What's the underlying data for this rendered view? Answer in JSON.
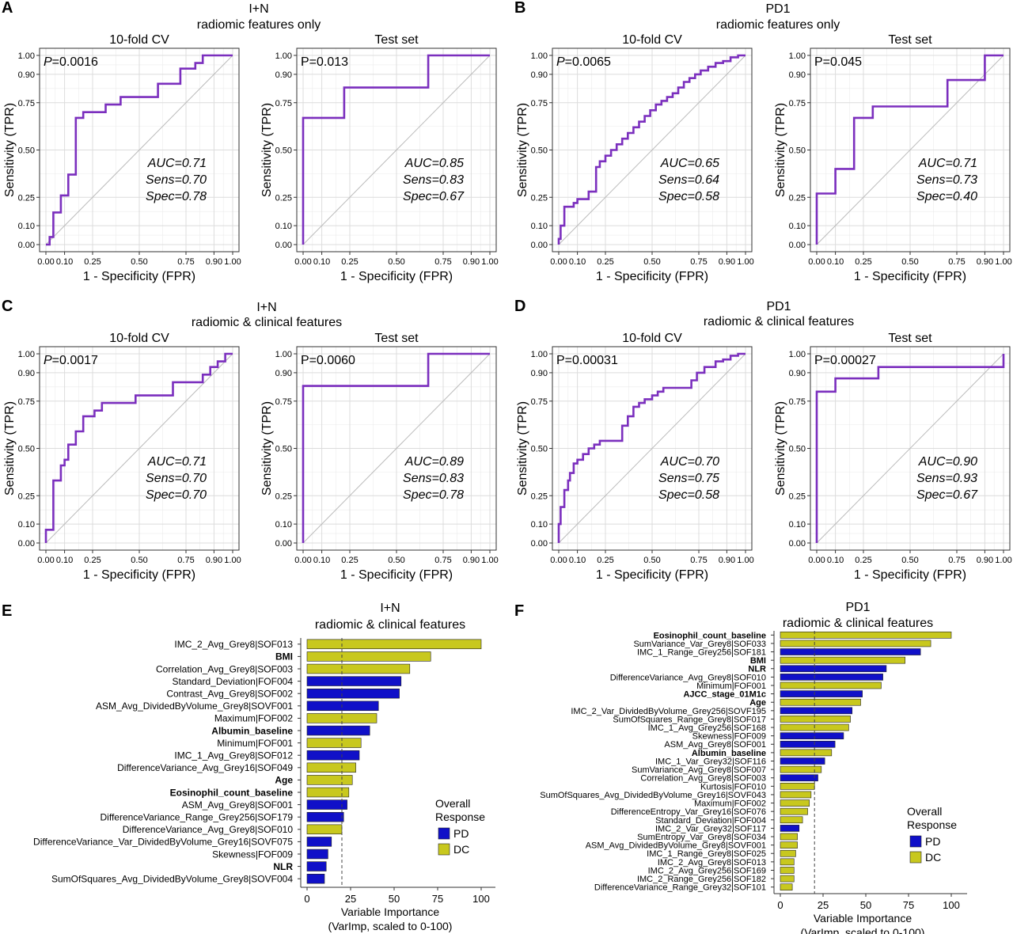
{
  "panels": [
    {
      "letter": "A",
      "title_lines": [
        "I+N",
        "radiomic features only"
      ]
    },
    {
      "letter": "B",
      "title_lines": [
        "PD1",
        "radiomic features only"
      ]
    },
    {
      "letter": "C",
      "title_lines": [
        "I+N",
        "radiomic & clinical features"
      ]
    },
    {
      "letter": "D",
      "title_lines": [
        "PD1",
        "radiomic & clinical features"
      ]
    },
    {
      "letter": "E",
      "title_lines": [
        "I+N",
        "radiomic & clinical features"
      ]
    },
    {
      "letter": "F",
      "title_lines": [
        "PD1",
        "radiomic & clinical features"
      ]
    }
  ],
  "colors": {
    "roc_line": "#7B2FBE",
    "PD": "#1010C8",
    "DC": "#C8C81E",
    "diagonal": "#bbbbbb",
    "grid": "#ebebeb"
  },
  "roc_axes": {
    "xlabel": "1 - Specificity (FPR)",
    "ylabel": "Sensitivity (TPR)",
    "ticks": [
      0,
      0.1,
      0.25,
      0.5,
      0.75,
      0.9,
      1.0
    ],
    "tick_labels": [
      "0.00",
      "0.10",
      "0.25",
      "0.50",
      "0.75",
      "0.90",
      "1.00"
    ]
  },
  "bar_legend": {
    "title_lines": [
      "Overall",
      "Response"
    ],
    "items": [
      "PD",
      "DC"
    ]
  },
  "bar_axes": {
    "xlabel_lines": [
      "Variable Importance",
      "(VarImp, scaled to 0-100)"
    ],
    "ticks": [
      0,
      25,
      50,
      75,
      100
    ],
    "tick_labels": [
      "0",
      "25",
      "50",
      "75",
      "100"
    ],
    "xlim": [
      0,
      100
    ],
    "reference_line": 20
  },
  "chart_data": [
    {
      "type": "line",
      "panel": "A",
      "title": "10-fold CV",
      "p_label": "P",
      "p_value": "=0.0016",
      "stats": [
        "AUC=0.71",
        "Sens=0.70",
        "Spec=0.78"
      ],
      "series": [
        {
          "name": "ROC",
          "x": [
            0,
            0.02,
            0.02,
            0.04,
            0.04,
            0.08,
            0.08,
            0.12,
            0.12,
            0.16,
            0.16,
            0.2,
            0.2,
            0.32,
            0.32,
            0.4,
            0.4,
            0.6,
            0.6,
            0.72,
            0.72,
            0.8,
            0.8,
            0.84,
            0.84,
            1.0
          ],
          "y": [
            0,
            0,
            0.04,
            0.04,
            0.17,
            0.17,
            0.26,
            0.26,
            0.37,
            0.37,
            0.67,
            0.67,
            0.7,
            0.7,
            0.74,
            0.74,
            0.78,
            0.78,
            0.85,
            0.85,
            0.93,
            0.93,
            0.96,
            0.96,
            1.0,
            1.0
          ]
        }
      ],
      "xlim": [
        0,
        1
      ],
      "ylim": [
        0,
        1
      ]
    },
    {
      "type": "line",
      "panel": "A",
      "title": "Test set",
      "p_label": "",
      "p_value": "P=0.013",
      "stats": [
        "AUC=0.85",
        "Sens=0.83",
        "Spec=0.67"
      ],
      "series": [
        {
          "name": "ROC",
          "x": [
            0,
            0,
            0.22,
            0.22,
            0.67,
            0.67,
            1.0
          ],
          "y": [
            0,
            0.67,
            0.67,
            0.83,
            0.83,
            1.0,
            1.0
          ]
        }
      ],
      "xlim": [
        0,
        1
      ],
      "ylim": [
        0,
        1
      ]
    },
    {
      "type": "line",
      "panel": "B",
      "title": "10-fold CV",
      "p_label": "P",
      "p_value": "=0.0065",
      "stats": [
        "AUC=0.65",
        "Sens=0.64",
        "Spec=0.58"
      ],
      "series": [
        {
          "name": "ROC",
          "x": [
            0,
            0,
            0.01,
            0.01,
            0.03,
            0.03,
            0.08,
            0.08,
            0.1,
            0.1,
            0.16,
            0.16,
            0.2,
            0.2,
            0.22,
            0.22,
            0.25,
            0.25,
            0.28,
            0.28,
            0.31,
            0.31,
            0.34,
            0.34,
            0.37,
            0.37,
            0.4,
            0.4,
            0.43,
            0.43,
            0.46,
            0.46,
            0.49,
            0.49,
            0.52,
            0.52,
            0.55,
            0.55,
            0.58,
            0.58,
            0.61,
            0.61,
            0.64,
            0.64,
            0.67,
            0.67,
            0.7,
            0.7,
            0.73,
            0.73,
            0.76,
            0.76,
            0.8,
            0.8,
            0.84,
            0.84,
            0.88,
            0.88,
            0.92,
            0.92,
            0.96,
            0.96,
            1.0
          ],
          "y": [
            0,
            0.03,
            0.03,
            0.1,
            0.1,
            0.2,
            0.2,
            0.22,
            0.22,
            0.24,
            0.24,
            0.28,
            0.28,
            0.41,
            0.41,
            0.44,
            0.44,
            0.47,
            0.47,
            0.5,
            0.5,
            0.53,
            0.53,
            0.56,
            0.56,
            0.59,
            0.59,
            0.62,
            0.62,
            0.65,
            0.65,
            0.68,
            0.68,
            0.71,
            0.71,
            0.74,
            0.74,
            0.76,
            0.76,
            0.78,
            0.78,
            0.8,
            0.8,
            0.83,
            0.83,
            0.86,
            0.86,
            0.88,
            0.88,
            0.9,
            0.9,
            0.92,
            0.92,
            0.94,
            0.94,
            0.96,
            0.96,
            0.97,
            0.97,
            0.99,
            0.99,
            1.0,
            1.0
          ]
        }
      ],
      "xlim": [
        0,
        1
      ],
      "ylim": [
        0,
        1
      ]
    },
    {
      "type": "line",
      "panel": "B",
      "title": "Test set",
      "p_label": "",
      "p_value": "P=0.045",
      "stats": [
        "AUC=0.71",
        "Sens=0.73",
        "Spec=0.40"
      ],
      "series": [
        {
          "name": "ROC",
          "x": [
            0,
            0,
            0.1,
            0.1,
            0.2,
            0.2,
            0.3,
            0.3,
            0.7,
            0.7,
            0.9,
            0.9,
            1.0
          ],
          "y": [
            0,
            0.27,
            0.27,
            0.4,
            0.4,
            0.67,
            0.67,
            0.73,
            0.73,
            0.87,
            0.87,
            1.0,
            1.0
          ]
        }
      ],
      "xlim": [
        0,
        1
      ],
      "ylim": [
        0,
        1
      ]
    },
    {
      "type": "line",
      "panel": "C",
      "title": "10-fold CV",
      "p_label": "P",
      "p_value": "=0.0017",
      "stats": [
        "AUC=0.71",
        "Sens=0.70",
        "Spec=0.70"
      ],
      "series": [
        {
          "name": "ROC",
          "x": [
            0,
            0,
            0.04,
            0.04,
            0.08,
            0.08,
            0.1,
            0.1,
            0.12,
            0.12,
            0.16,
            0.16,
            0.2,
            0.2,
            0.26,
            0.26,
            0.3,
            0.3,
            0.34,
            0.34,
            0.48,
            0.48,
            0.56,
            0.56,
            0.68,
            0.68,
            0.8,
            0.8,
            0.84,
            0.84,
            0.88,
            0.88,
            0.92,
            0.92,
            0.96,
            0.96,
            1.0
          ],
          "y": [
            0,
            0.07,
            0.07,
            0.33,
            0.33,
            0.41,
            0.41,
            0.44,
            0.44,
            0.52,
            0.52,
            0.59,
            0.59,
            0.67,
            0.67,
            0.7,
            0.7,
            0.74,
            0.74,
            0.74,
            0.74,
            0.78,
            0.78,
            0.78,
            0.78,
            0.85,
            0.85,
            0.85,
            0.85,
            0.89,
            0.89,
            0.93,
            0.93,
            0.96,
            0.96,
            1.0,
            1.0
          ]
        }
      ],
      "xlim": [
        0,
        1
      ],
      "ylim": [
        0,
        1
      ]
    },
    {
      "type": "line",
      "panel": "C",
      "title": "Test set",
      "p_label": "",
      "p_value": "P=0.0060",
      "stats": [
        "AUC=0.89",
        "Sens=0.83",
        "Spec=0.78"
      ],
      "series": [
        {
          "name": "ROC",
          "x": [
            0,
            0,
            0.67,
            0.67,
            1.0
          ],
          "y": [
            0,
            0.83,
            0.83,
            1.0,
            1.0
          ]
        }
      ],
      "xlim": [
        0,
        1
      ],
      "ylim": [
        0,
        1
      ]
    },
    {
      "type": "line",
      "panel": "D",
      "title": "10-fold CV",
      "p_label": "",
      "p_value": "P=0.00031",
      "stats": [
        "AUC=0.70",
        "Sens=0.75",
        "Spec=0.58"
      ],
      "series": [
        {
          "name": "ROC",
          "x": [
            0,
            0,
            0.01,
            0.01,
            0.03,
            0.03,
            0.05,
            0.05,
            0.06,
            0.06,
            0.08,
            0.08,
            0.1,
            0.1,
            0.13,
            0.13,
            0.16,
            0.16,
            0.19,
            0.19,
            0.22,
            0.22,
            0.25,
            0.25,
            0.34,
            0.34,
            0.37,
            0.37,
            0.4,
            0.4,
            0.43,
            0.43,
            0.46,
            0.46,
            0.5,
            0.5,
            0.53,
            0.53,
            0.56,
            0.56,
            0.6,
            0.6,
            0.71,
            0.71,
            0.74,
            0.74,
            0.78,
            0.78,
            0.84,
            0.84,
            0.88,
            0.88,
            0.92,
            0.92,
            0.96,
            0.96,
            1.0
          ],
          "y": [
            0,
            0.1,
            0.1,
            0.19,
            0.19,
            0.28,
            0.28,
            0.33,
            0.33,
            0.37,
            0.37,
            0.42,
            0.42,
            0.44,
            0.44,
            0.47,
            0.47,
            0.5,
            0.5,
            0.52,
            0.52,
            0.54,
            0.54,
            0.54,
            0.54,
            0.62,
            0.62,
            0.67,
            0.67,
            0.72,
            0.72,
            0.74,
            0.74,
            0.76,
            0.76,
            0.78,
            0.78,
            0.8,
            0.8,
            0.82,
            0.82,
            0.82,
            0.82,
            0.86,
            0.86,
            0.9,
            0.9,
            0.93,
            0.93,
            0.96,
            0.96,
            0.97,
            0.97,
            0.99,
            0.99,
            1.0,
            1.0
          ]
        }
      ],
      "xlim": [
        0,
        1
      ],
      "ylim": [
        0,
        1
      ]
    },
    {
      "type": "line",
      "panel": "D",
      "title": "Test set",
      "p_label": "",
      "p_value": "P=0.00027",
      "stats": [
        "AUC=0.90",
        "Sens=0.93",
        "Spec=0.67"
      ],
      "series": [
        {
          "name": "ROC",
          "x": [
            0,
            0,
            0.1,
            0.1,
            0.33,
            0.33,
            1.0,
            1.0
          ],
          "y": [
            0,
            0.8,
            0.8,
            0.87,
            0.87,
            0.93,
            0.93,
            1.0
          ]
        }
      ],
      "xlim": [
        0,
        1
      ],
      "ylim": [
        0,
        1
      ]
    },
    {
      "type": "bar",
      "panel": "E",
      "orientation": "horizontal",
      "categories": [
        "IMC_2_Avg_Grey8|SOF013",
        "BMI",
        "Correlation_Avg_Grey8|SOF003",
        "Standard_Deviation|FOF004",
        "Contrast_Avg_Grey8|SOF002",
        "ASM_Avg_DividedByVolume_Grey8|SOVF001",
        "Maximum|FOF002",
        "Albumin_baseline",
        "Minimum|FOF001",
        "IMC_1_Avg_Grey8|SOF012",
        "DifferenceVariance_Avg_Grey16|SOF049",
        "Age",
        "Eosinophil_count_baseline",
        "ASM_Avg_Grey8|SOF001",
        "DifferenceVariance_Range_Grey256|SOF179",
        "DifferenceVariance_Avg_Grey8|SOF010",
        "DifferenceVariance_Var_DividedByVolume_Grey16|SOVF075",
        "Skewness|FOF009",
        "NLR",
        "SumOfSquares_Avg_DividedByVolume_Grey8|SOVF004"
      ],
      "values": [
        100,
        71,
        59,
        54,
        53,
        41,
        40,
        36,
        31,
        30,
        28,
        26,
        24,
        23,
        21,
        20,
        14,
        12,
        11,
        10
      ],
      "groups": [
        "DC",
        "DC",
        "DC",
        "PD",
        "PD",
        "PD",
        "DC",
        "PD",
        "DC",
        "PD",
        "DC",
        "DC",
        "DC",
        "PD",
        "PD",
        "DC",
        "PD",
        "PD",
        "PD",
        "PD"
      ],
      "bold": [
        false,
        true,
        false,
        false,
        false,
        false,
        false,
        true,
        false,
        false,
        false,
        true,
        true,
        false,
        false,
        false,
        false,
        false,
        true,
        false
      ],
      "xlim": [
        0,
        100
      ]
    },
    {
      "type": "bar",
      "panel": "F",
      "orientation": "horizontal",
      "categories": [
        "Eosinophil_count_baseline",
        "SumVariance_Var_Grey8|SOF033",
        "IMC_1_Range_Grey256|SOF181",
        "BMI",
        "NLR",
        "DifferenceVariance_Avg_Grey8|SOF010",
        "Minimum|FOF001",
        "AJCC_stage_01M1c",
        "Age",
        "IMC_2_Var_DividedByVolume_Grey256|SOVF195",
        "SumOfSquares_Range_Grey8|SOF017",
        "IMC_1_Avg_Grey256|SOF168",
        "Skewness|FOF009",
        "ASM_Avg_Grey8|SOF001",
        "Albumin_baseline",
        "IMC_1_Var_Grey32|SOF116",
        "SumVariance_Avg_Grey8|SOF007",
        "Correlation_Avg_Grey8|SOF003",
        "Kurtosis|FOF010",
        "SumOfSquares_Avg_DividedByVolume_Grey16|SOVF043",
        "Maximum|FOF002",
        "DifferenceEntropy_Var_Grey16|SOF076",
        "Standard_Deviation|FOF004",
        "IMC_2_Var_Grey32|SOF117",
        "SumEntropy_Var_Grey8|SOF034",
        "ASM_Avg_DividedByVolume_Grey8|SOVF001",
        "IMC_1_Range_Grey8|SOF025",
        "IMC_2_Avg_Grey8|SOF013",
        "IMC_2_Avg_Grey256|SOF169",
        "IMC_2_Range_Grey256|SOF182",
        "DifferenceVariance_Range_Grey32|SOF101"
      ],
      "values": [
        100,
        88,
        82,
        73,
        62,
        60,
        59,
        48,
        47,
        42,
        41,
        40,
        37,
        32,
        30,
        26,
        24,
        22,
        20,
        18,
        17,
        16,
        13,
        11,
        10,
        10,
        9,
        8,
        8,
        8,
        7
      ],
      "groups": [
        "DC",
        "DC",
        "PD",
        "DC",
        "PD",
        "PD",
        "DC",
        "PD",
        "DC",
        "PD",
        "DC",
        "DC",
        "PD",
        "PD",
        "DC",
        "PD",
        "DC",
        "PD",
        "DC",
        "DC",
        "DC",
        "DC",
        "DC",
        "PD",
        "DC",
        "DC",
        "DC",
        "DC",
        "DC",
        "DC",
        "DC"
      ],
      "bold": [
        true,
        false,
        false,
        true,
        true,
        false,
        false,
        true,
        true,
        false,
        false,
        false,
        false,
        false,
        true,
        false,
        false,
        false,
        false,
        false,
        false,
        false,
        false,
        false,
        false,
        false,
        false,
        false,
        false,
        false,
        false
      ],
      "xlim": [
        0,
        100
      ]
    }
  ]
}
